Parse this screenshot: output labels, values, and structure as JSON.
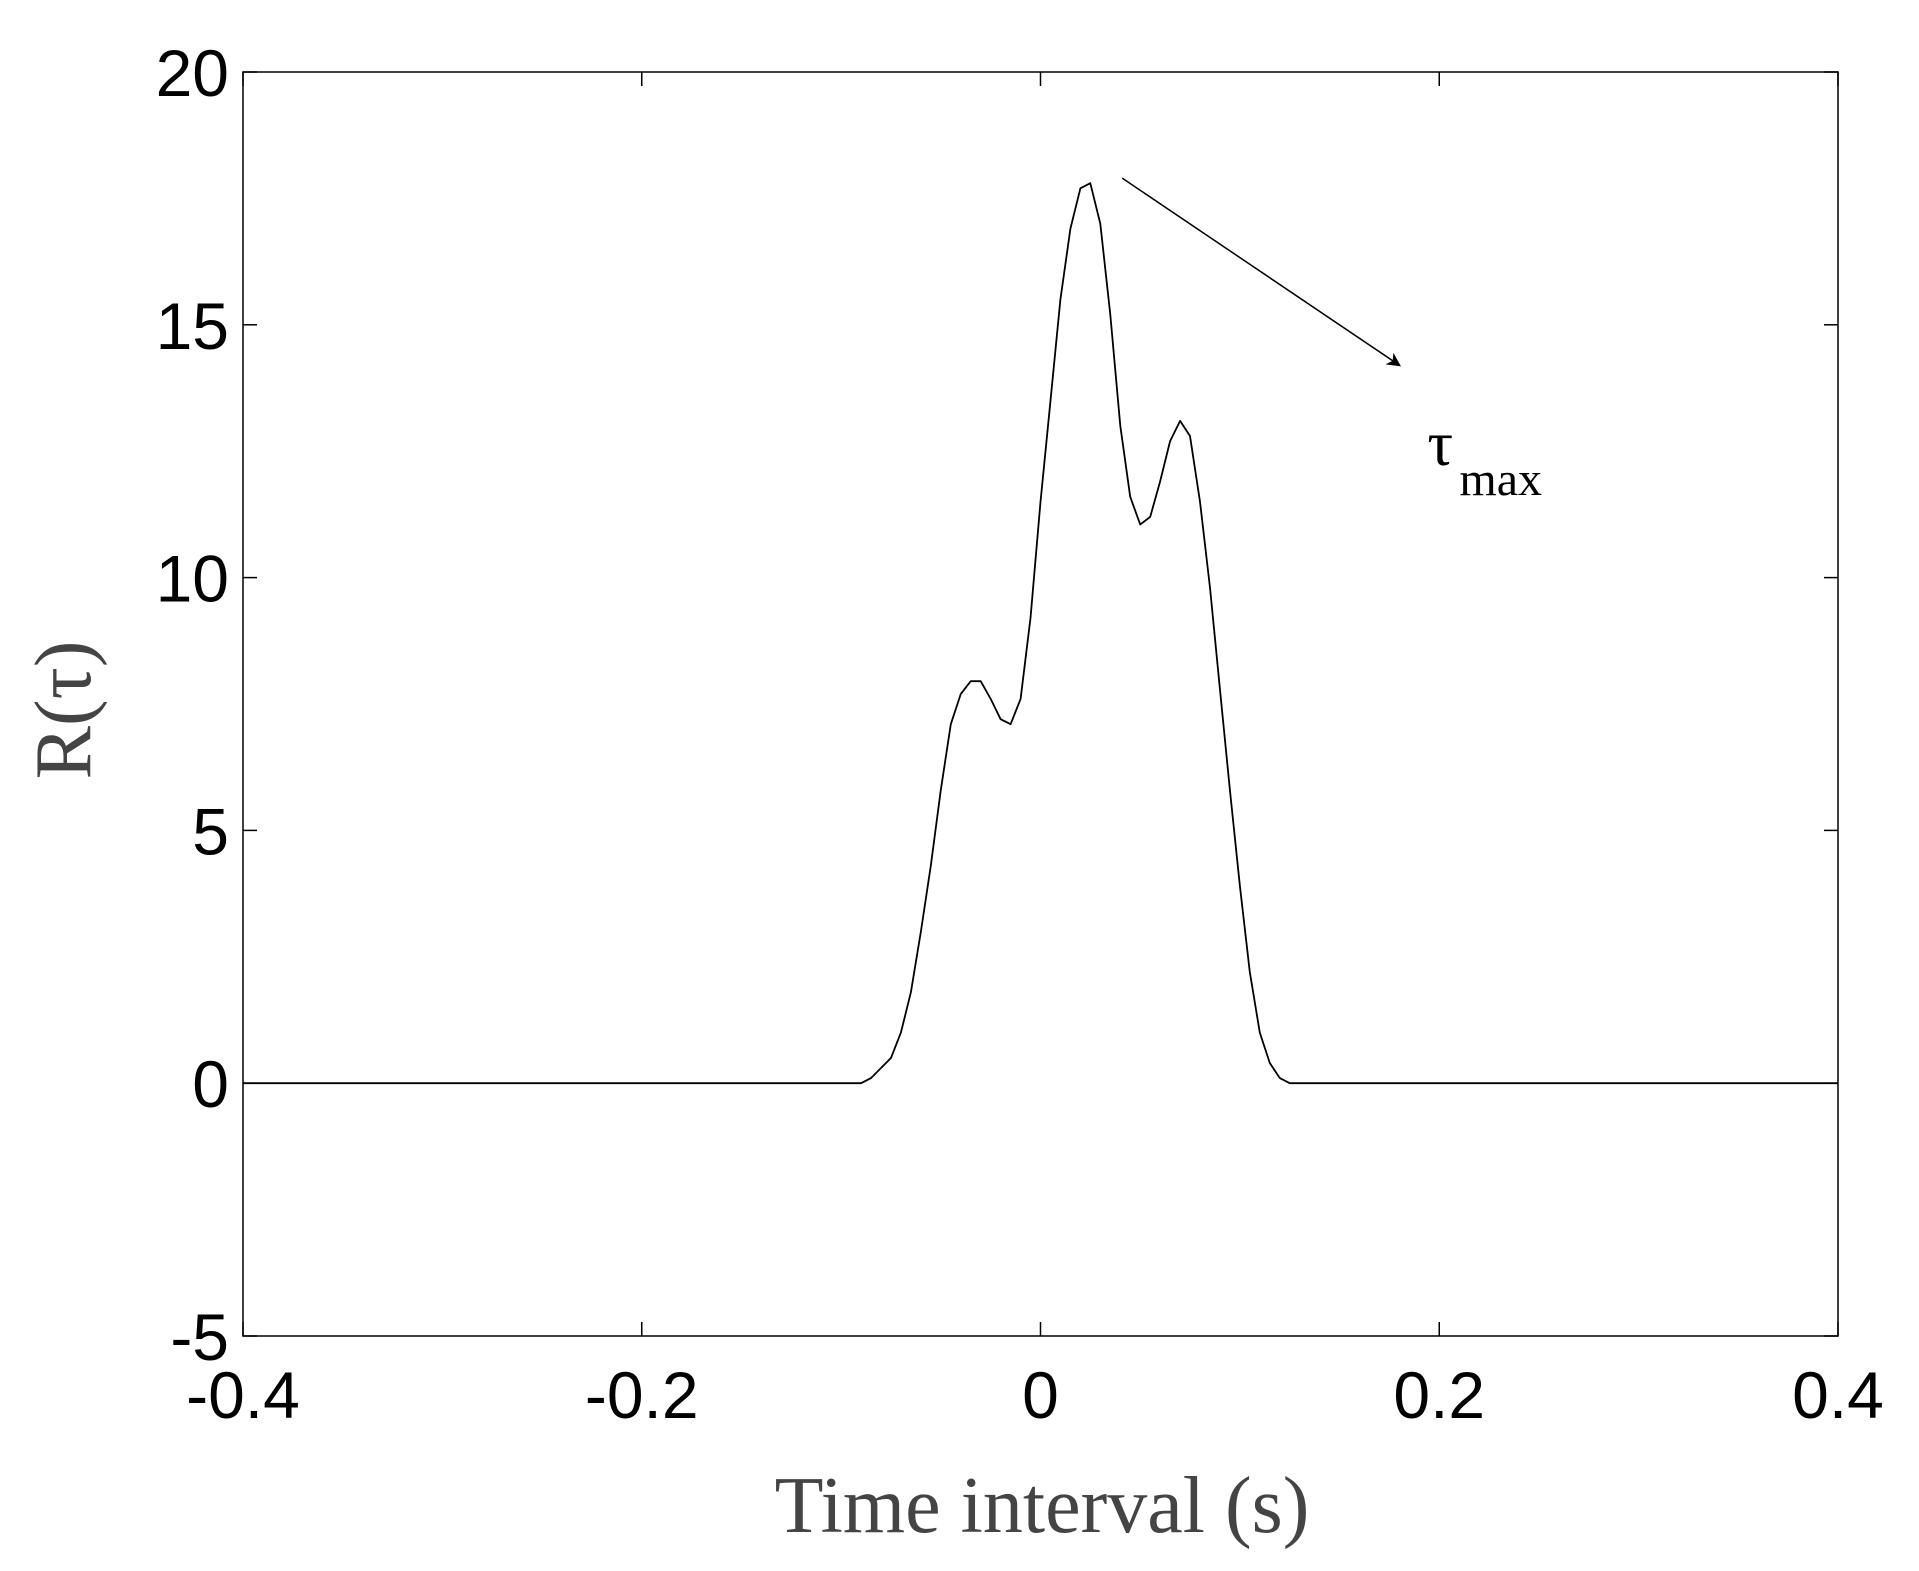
{
  "chart_data": {
    "type": "line",
    "title": "",
    "xlabel": "Time interval (s)",
    "ylabel": "R(τ)",
    "xlim": [
      -0.4,
      0.4
    ],
    "ylim": [
      -5,
      20
    ],
    "xticks": [
      -0.4,
      -0.2,
      0,
      0.2,
      0.4
    ],
    "xtick_labels": [
      "-0.4",
      "-0.2",
      "0",
      "0.2",
      "0.4"
    ],
    "yticks": [
      -5,
      0,
      5,
      10,
      15,
      20
    ],
    "ytick_labels": [
      "-5",
      "0",
      "5",
      "10",
      "15",
      "20"
    ],
    "grid": false,
    "legend": "none",
    "series": [
      {
        "x": [
          -0.4,
          -0.09,
          -0.085,
          -0.08,
          -0.075,
          -0.07,
          -0.065,
          -0.06,
          -0.055,
          -0.05,
          -0.045,
          -0.04,
          -0.035,
          -0.03,
          -0.025,
          -0.02,
          -0.015,
          -0.01,
          -0.005,
          0.0,
          0.005,
          0.01,
          0.015,
          0.02,
          0.025,
          0.03,
          0.035,
          0.04,
          0.045,
          0.05,
          0.055,
          0.06,
          0.065,
          0.07,
          0.075,
          0.08,
          0.085,
          0.09,
          0.095,
          0.1,
          0.105,
          0.11,
          0.115,
          0.12,
          0.125,
          0.13,
          0.135,
          0.14,
          0.145,
          0.15,
          0.155,
          0.16,
          0.165,
          0.17,
          0.4
        ],
        "y": [
          0,
          0,
          0.1,
          0.3,
          0.5,
          1.0,
          1.8,
          3.0,
          4.3,
          5.8,
          7.1,
          7.7,
          7.95,
          7.95,
          7.6,
          7.2,
          7.1,
          7.6,
          9.2,
          11.5,
          13.5,
          15.5,
          16.9,
          17.7,
          17.8,
          17.0,
          15.2,
          13.0,
          11.6,
          11.05,
          11.2,
          11.9,
          12.7,
          13.1,
          12.8,
          11.5,
          9.8,
          7.8,
          5.8,
          3.9,
          2.2,
          1.0,
          0.4,
          0.1,
          0,
          0,
          0,
          0,
          0,
          0,
          0,
          0,
          0,
          0,
          0
        ]
      }
    ],
    "annotations": [
      {
        "symbol": "τ",
        "subscript": "max",
        "arrow_from": [
          0.041,
          17.9
        ],
        "arrow_to": [
          0.18,
          14.2
        ]
      }
    ]
  }
}
